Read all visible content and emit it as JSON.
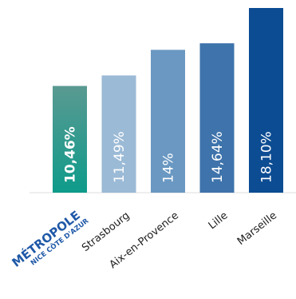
{
  "chart_data": {
    "type": "bar",
    "categories": [
      {
        "line1": "MÉTROPOLE",
        "line2": "NICE CÔTE D'AZUR",
        "is_logo": true
      },
      {
        "line1": "Strasbourg"
      },
      {
        "line1": "Aix-en-Provence"
      },
      {
        "line1": "Lille"
      },
      {
        "line1": "Marseille"
      }
    ],
    "values": [
      10.46,
      11.49,
      14,
      14.64,
      18.1
    ],
    "value_labels": [
      "10,46%",
      "11,49%",
      "14%",
      "14,64%",
      "18,10%"
    ],
    "colors": [
      "#2b9a92",
      "#9bbad6",
      "#6a98c2",
      "#3e73ab",
      "#0c4c93"
    ],
    "highlight_index": 0,
    "ylim": [
      0,
      18.1
    ],
    "grid": false,
    "legend": "none"
  }
}
